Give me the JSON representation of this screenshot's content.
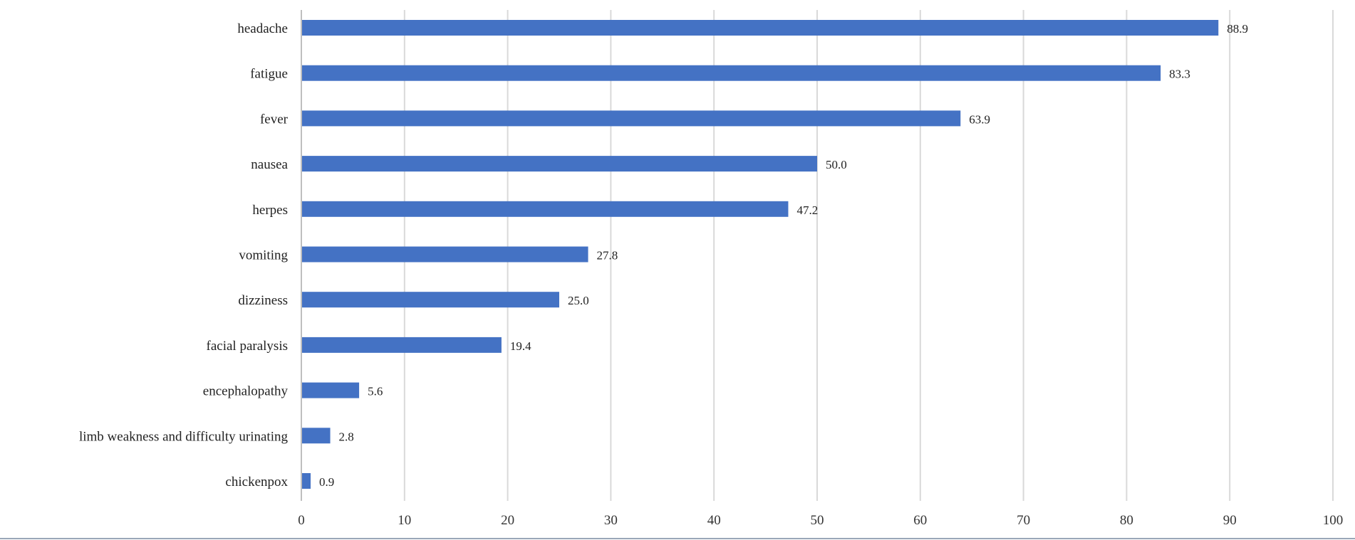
{
  "chart_data": {
    "type": "bar",
    "orientation": "horizontal",
    "categories": [
      "headache",
      "fatigue",
      "fever",
      "nausea",
      "herpes",
      "vomiting",
      "dizziness",
      "facial paralysis",
      "encephalopathy",
      "limb weakness and difficulty urinating",
      "chickenpox"
    ],
    "values": [
      88.9,
      83.3,
      63.9,
      50.0,
      47.2,
      27.8,
      25.0,
      19.4,
      5.6,
      2.8,
      0.9
    ],
    "value_labels": [
      "88.9",
      "83.3",
      "63.9",
      "50.0",
      "47.2",
      "27.8",
      "25.0",
      "19.4",
      "5.6",
      "2.8",
      "0.9"
    ],
    "xlim": [
      0,
      100
    ],
    "xticks": [
      0,
      10,
      20,
      30,
      40,
      50,
      60,
      70,
      80,
      90,
      100
    ],
    "title": "",
    "xlabel": "",
    "ylabel": "",
    "grid": "vertical",
    "legend": "none",
    "bar_color": "#4472c4"
  }
}
